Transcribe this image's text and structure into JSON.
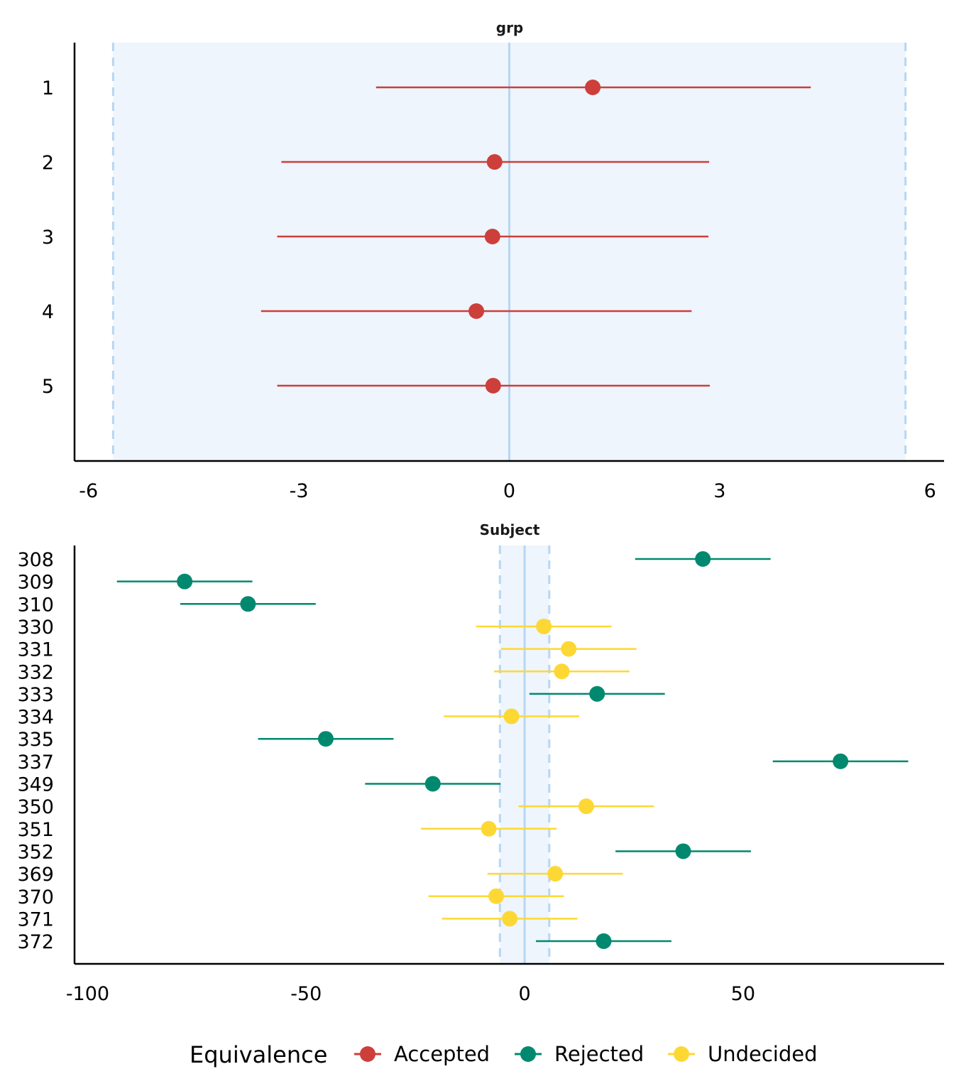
{
  "colors": {
    "Accepted": "#cd3f3b",
    "Rejected": "#00896f",
    "Undecided": "#fdd835",
    "rope_fill": "#eef5fc",
    "rope_line": "#b7d6f3",
    "axis": "#000000"
  },
  "chart_data": [
    {
      "type": "scatter",
      "subtype": "forest-plot",
      "title": "grp",
      "xlim": [
        -6.2,
        6.2
      ],
      "x_ticks": [
        -6,
        -3,
        0,
        3,
        6
      ],
      "x_tick_labels": [
        "-6",
        "-3",
        "0",
        "3",
        "6"
      ],
      "rope": [
        -5.65,
        5.65
      ],
      "grid": false,
      "rows": [
        {
          "label": "1",
          "estimate": 1.19,
          "lower": -1.9,
          "upper": 4.3,
          "equivalence": "Accepted"
        },
        {
          "label": "2",
          "estimate": -0.21,
          "lower": -3.25,
          "upper": 2.85,
          "equivalence": "Accepted"
        },
        {
          "label": "3",
          "estimate": -0.24,
          "lower": -3.31,
          "upper": 2.84,
          "equivalence": "Accepted"
        },
        {
          "label": "4",
          "estimate": -0.47,
          "lower": -3.54,
          "upper": 2.6,
          "equivalence": "Accepted"
        },
        {
          "label": "5",
          "estimate": -0.23,
          "lower": -3.31,
          "upper": 2.86,
          "equivalence": "Accepted"
        }
      ]
    },
    {
      "type": "scatter",
      "subtype": "forest-plot",
      "title": "Subject",
      "xlim": [
        -103,
        96
      ],
      "x_ticks": [
        -100,
        -50,
        0,
        50
      ],
      "x_tick_labels": [
        "-100",
        "-50",
        "0",
        "50"
      ],
      "rope": [
        -5.65,
        5.65
      ],
      "grid": false,
      "rows": [
        {
          "label": "308",
          "estimate": 40.8,
          "lower": 25.3,
          "upper": 56.3,
          "equivalence": "Rejected"
        },
        {
          "label": "309",
          "estimate": -77.8,
          "lower": -93.3,
          "upper": -62.3,
          "equivalence": "Rejected"
        },
        {
          "label": "310",
          "estimate": -63.3,
          "lower": -78.8,
          "upper": -47.8,
          "equivalence": "Rejected"
        },
        {
          "label": "330",
          "estimate": 4.4,
          "lower": -11.1,
          "upper": 19.9,
          "equivalence": "Undecided"
        },
        {
          "label": "331",
          "estimate": 10.1,
          "lower": -5.4,
          "upper": 25.6,
          "equivalence": "Undecided"
        },
        {
          "label": "332",
          "estimate": 8.5,
          "lower": -7.0,
          "upper": 24.0,
          "equivalence": "Undecided"
        },
        {
          "label": "333",
          "estimate": 16.6,
          "lower": 1.1,
          "upper": 32.1,
          "equivalence": "Rejected"
        },
        {
          "label": "334",
          "estimate": -3.0,
          "lower": -18.5,
          "upper": 12.5,
          "equivalence": "Undecided"
        },
        {
          "label": "335",
          "estimate": -45.5,
          "lower": -61.0,
          "upper": -30.0,
          "equivalence": "Rejected"
        },
        {
          "label": "337",
          "estimate": 72.3,
          "lower": 56.8,
          "upper": 87.8,
          "equivalence": "Rejected"
        },
        {
          "label": "349",
          "estimate": -21.0,
          "lower": -36.5,
          "upper": -5.5,
          "equivalence": "Rejected"
        },
        {
          "label": "350",
          "estimate": 14.1,
          "lower": -1.4,
          "upper": 29.6,
          "equivalence": "Undecided"
        },
        {
          "label": "351",
          "estimate": -8.2,
          "lower": -23.7,
          "upper": 7.3,
          "equivalence": "Undecided"
        },
        {
          "label": "352",
          "estimate": 36.3,
          "lower": 20.8,
          "upper": 51.8,
          "equivalence": "Rejected"
        },
        {
          "label": "369",
          "estimate": 7.0,
          "lower": -8.5,
          "upper": 22.5,
          "equivalence": "Undecided"
        },
        {
          "label": "370",
          "estimate": -6.5,
          "lower": -22.0,
          "upper": 9.0,
          "equivalence": "Undecided"
        },
        {
          "label": "371",
          "estimate": -3.4,
          "lower": -18.9,
          "upper": 12.1,
          "equivalence": "Undecided"
        },
        {
          "label": "372",
          "estimate": 18.1,
          "lower": 2.6,
          "upper": 33.6,
          "equivalence": "Rejected"
        }
      ]
    }
  ],
  "legend": {
    "title": "Equivalence",
    "position": "bottom",
    "items": [
      {
        "label": "Accepted",
        "key": "Accepted"
      },
      {
        "label": "Rejected",
        "key": "Rejected"
      },
      {
        "label": "Undecided",
        "key": "Undecided"
      }
    ]
  }
}
